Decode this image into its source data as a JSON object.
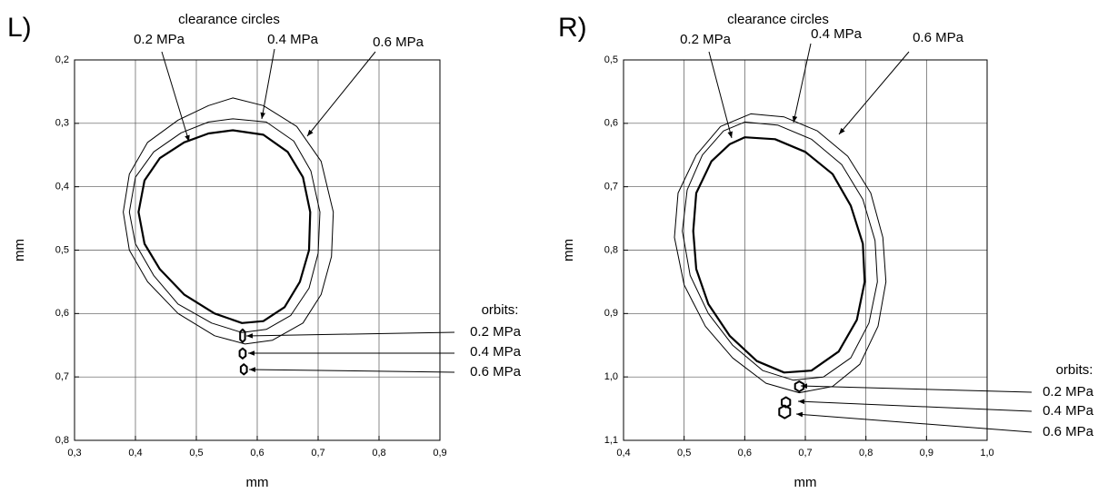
{
  "chart_data": [
    {
      "type": "line",
      "panel_label": "L)",
      "x_label": "mm",
      "y_label": "mm",
      "xlim": [
        0.3,
        0.9
      ],
      "xticks": [
        {
          "value": 0.3,
          "label": "0,3"
        },
        {
          "value": 0.4,
          "label": "0,4"
        },
        {
          "value": 0.5,
          "label": "0,5"
        },
        {
          "value": 0.6,
          "label": "0,6"
        },
        {
          "value": 0.7,
          "label": "0,7"
        },
        {
          "value": 0.8,
          "label": "0,8"
        },
        {
          "value": 0.9,
          "label": "0,9"
        }
      ],
      "ylim": [
        0.2,
        0.8
      ],
      "y_inverted": true,
      "yticks": [
        {
          "value": 0.2,
          "label": "0,2"
        },
        {
          "value": 0.3,
          "label": "0,3"
        },
        {
          "value": 0.4,
          "label": "0,4"
        },
        {
          "value": 0.5,
          "label": "0,5"
        },
        {
          "value": 0.6,
          "label": "0,6"
        },
        {
          "value": 0.7,
          "label": "0,7"
        },
        {
          "value": 0.8,
          "label": "0,8"
        }
      ],
      "grid": true,
      "clearance_circles": {
        "label": "clearance circles",
        "series": [
          {
            "name": "0.2 MPa",
            "color": "#000000",
            "line_width": 2.2,
            "x": [
              0.56,
              0.61,
              0.65,
              0.675,
              0.687,
              0.685,
              0.67,
              0.645,
              0.61,
              0.575,
              0.53,
              0.48,
              0.44,
              0.415,
              0.405,
              0.415,
              0.44,
              0.48,
              0.52
            ],
            "y": [
              0.311,
              0.318,
              0.345,
              0.385,
              0.44,
              0.5,
              0.55,
              0.59,
              0.612,
              0.615,
              0.6,
              0.57,
              0.53,
              0.49,
              0.44,
              0.39,
              0.355,
              0.33,
              0.316
            ]
          },
          {
            "name": "0.4 MPa",
            "color": "#000000",
            "line_width": 1,
            "x": [
              0.56,
              0.615,
              0.66,
              0.688,
              0.703,
              0.7,
              0.685,
              0.655,
              0.615,
              0.575,
              0.525,
              0.47,
              0.43,
              0.4,
              0.39,
              0.4,
              0.43,
              0.475,
              0.52
            ],
            "y": [
              0.293,
              0.298,
              0.328,
              0.375,
              0.44,
              0.505,
              0.56,
              0.603,
              0.625,
              0.63,
              0.615,
              0.585,
              0.54,
              0.49,
              0.44,
              0.385,
              0.345,
              0.315,
              0.298
            ]
          },
          {
            "name": "0.6 MPa",
            "color": "#000000",
            "line_width": 1,
            "x": [
              0.56,
              0.61,
              0.665,
              0.705,
              0.725,
              0.722,
              0.705,
              0.675,
              0.625,
              0.58,
              0.53,
              0.47,
              0.42,
              0.39,
              0.38,
              0.39,
              0.42,
              0.47,
              0.52
            ],
            "y": [
              0.26,
              0.272,
              0.305,
              0.36,
              0.44,
              0.51,
              0.57,
              0.615,
              0.642,
              0.648,
              0.635,
              0.6,
              0.55,
              0.5,
              0.44,
              0.38,
              0.33,
              0.295,
              0.272
            ]
          }
        ]
      },
      "orbits": {
        "label": "orbits:",
        "series": [
          {
            "name": "0.2 MPa",
            "color": "#000000",
            "line_width": 2,
            "x": [
              0.576,
              0.58,
              0.58,
              0.576,
              0.572,
              0.572
            ],
            "y": [
              0.625,
              0.629,
              0.641,
              0.645,
              0.641,
              0.629
            ]
          },
          {
            "name": "0.4 MPa",
            "color": "#000000",
            "line_width": 2,
            "x": [
              0.576,
              0.581,
              0.581,
              0.576,
              0.571,
              0.571
            ],
            "y": [
              0.655,
              0.659,
              0.667,
              0.671,
              0.667,
              0.659
            ]
          },
          {
            "name": "0.6 MPa",
            "color": "#000000",
            "line_width": 2,
            "x": [
              0.578,
              0.583,
              0.583,
              0.578,
              0.573,
              0.573
            ],
            "y": [
              0.68,
              0.684,
              0.692,
              0.696,
              0.692,
              0.684
            ]
          }
        ]
      }
    },
    {
      "type": "line",
      "panel_label": "R)",
      "x_label": "mm",
      "y_label": "mm",
      "xlim": [
        0.4,
        1.0
      ],
      "xticks": [
        {
          "value": 0.4,
          "label": "0,4"
        },
        {
          "value": 0.5,
          "label": "0,5"
        },
        {
          "value": 0.6,
          "label": "0,6"
        },
        {
          "value": 0.7,
          "label": "0,7"
        },
        {
          "value": 0.8,
          "label": "0,8"
        },
        {
          "value": 0.9,
          "label": "0,9"
        },
        {
          "value": 1.0,
          "label": "1,0"
        }
      ],
      "ylim": [
        0.5,
        1.1
      ],
      "y_inverted": true,
      "yticks": [
        {
          "value": 0.5,
          "label": "0,5"
        },
        {
          "value": 0.6,
          "label": "0,6"
        },
        {
          "value": 0.7,
          "label": "0,7"
        },
        {
          "value": 0.8,
          "label": "0,8"
        },
        {
          "value": 0.9,
          "label": "0,9"
        },
        {
          "value": 1.0,
          "label": "1,0"
        },
        {
          "value": 1.1,
          "label": "1,1"
        }
      ],
      "grid": true,
      "clearance_circles": {
        "label": "clearance circles",
        "series": [
          {
            "name": "0.2 MPa",
            "color": "#000000",
            "line_width": 2.2,
            "x": [
              0.6,
              0.65,
              0.7,
              0.745,
              0.775,
              0.795,
              0.798,
              0.785,
              0.755,
              0.71,
              0.665,
              0.62,
              0.575,
              0.54,
              0.52,
              0.515,
              0.52,
              0.545,
              0.575
            ],
            "y": [
              0.622,
              0.625,
              0.645,
              0.68,
              0.73,
              0.79,
              0.85,
              0.91,
              0.96,
              0.99,
              0.993,
              0.975,
              0.935,
              0.885,
              0.83,
              0.77,
              0.71,
              0.66,
              0.633
            ]
          },
          {
            "name": "0.4 MPa",
            "color": "#000000",
            "line_width": 1,
            "x": [
              0.6,
              0.655,
              0.71,
              0.76,
              0.795,
              0.815,
              0.819,
              0.805,
              0.775,
              0.73,
              0.68,
              0.63,
              0.58,
              0.54,
              0.51,
              0.497,
              0.505,
              0.53,
              0.565
            ],
            "y": [
              0.598,
              0.603,
              0.625,
              0.665,
              0.72,
              0.785,
              0.85,
              0.915,
              0.97,
              1.0,
              1.005,
              0.99,
              0.95,
              0.9,
              0.84,
              0.77,
              0.705,
              0.65,
              0.612
            ]
          },
          {
            "name": "0.6 MPa",
            "color": "#000000",
            "line_width": 1,
            "x": [
              0.61,
              0.665,
              0.72,
              0.77,
              0.808,
              0.828,
              0.833,
              0.82,
              0.79,
              0.745,
              0.69,
              0.635,
              0.58,
              0.535,
              0.5,
              0.484,
              0.49,
              0.52,
              0.56
            ],
            "y": [
              0.585,
              0.59,
              0.612,
              0.652,
              0.71,
              0.78,
              0.85,
              0.92,
              0.98,
              1.015,
              1.025,
              1.01,
              0.97,
              0.92,
              0.855,
              0.78,
              0.71,
              0.65,
              0.605
            ]
          }
        ]
      },
      "orbits": {
        "label": "orbits:",
        "series": [
          {
            "name": "0.2 MPa",
            "color": "#000000",
            "line_width": 2,
            "x": [
              0.69,
              0.697,
              0.697,
              0.69,
              0.683,
              0.683
            ],
            "y": [
              1.007,
              1.011,
              1.019,
              1.023,
              1.019,
              1.011
            ]
          },
          {
            "name": "0.4 MPa",
            "color": "#000000",
            "line_width": 2,
            "x": [
              0.668,
              0.675,
              0.675,
              0.668,
              0.661,
              0.661
            ],
            "y": [
              1.032,
              1.036,
              1.044,
              1.048,
              1.044,
              1.036
            ]
          },
          {
            "name": "0.6 MPa",
            "color": "#000000",
            "line_width": 2,
            "x": [
              0.666,
              0.675,
              0.675,
              0.666,
              0.657,
              0.657
            ],
            "y": [
              1.045,
              1.05,
              1.06,
              1.065,
              1.06,
              1.05
            ]
          }
        ]
      }
    }
  ]
}
